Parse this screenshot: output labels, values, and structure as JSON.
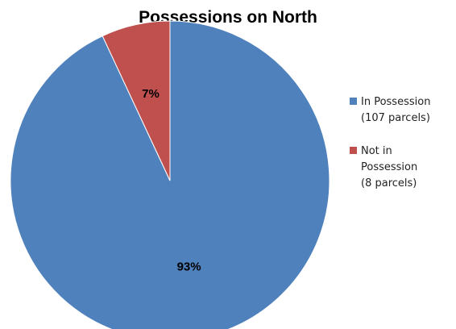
{
  "chart_data": {
    "type": "pie",
    "title": "Possessions on North",
    "slices": [
      {
        "name": "In Possession (107 parcels)",
        "legend_lines": [
          "In Possession",
          "(107 parcels)"
        ],
        "value": 107,
        "label": "93%",
        "color": "#4F81BD"
      },
      {
        "name": "Not in Possession (8 parcels)",
        "legend_lines": [
          "Not in",
          "Possession",
          "(8 parcels)"
        ],
        "value": 8,
        "label": "7%",
        "color": "#C0504D"
      }
    ],
    "legend_position": "right",
    "start_angle_deg": 0,
    "direction": "clockwise"
  }
}
